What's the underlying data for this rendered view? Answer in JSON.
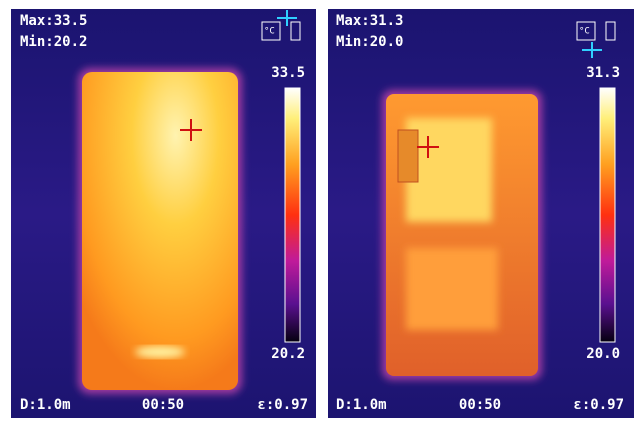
{
  "panels": [
    {
      "max": "Max:33.5",
      "min": "Min:20.2",
      "unit": "°C",
      "scale_top": "33.5",
      "scale_bottom": "20.2",
      "distance": "D:1.0m",
      "time": "00:50",
      "emissivity": "ε:0.97"
    },
    {
      "max": "Max:31.3",
      "min": "Min:20.0",
      "unit": "°C",
      "scale_top": "31.3",
      "scale_bottom": "20.0",
      "distance": "D:1.0m",
      "time": "00:50",
      "emissivity": "ε:0.97"
    }
  ]
}
